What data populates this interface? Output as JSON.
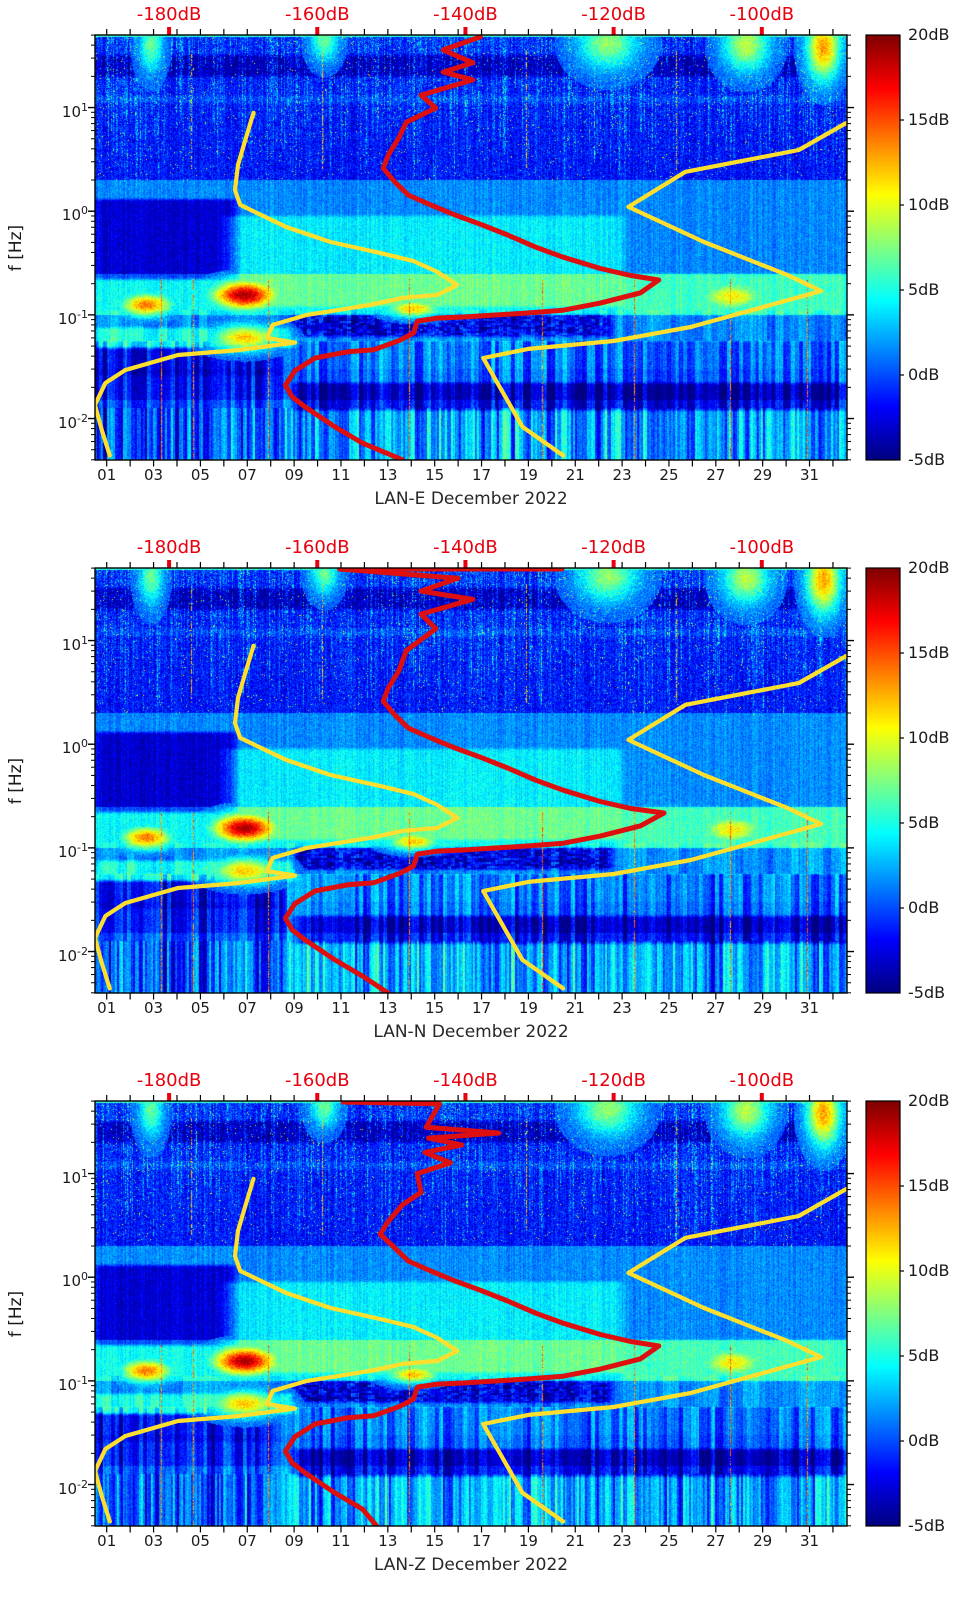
{
  "figure": {
    "background": "#ffffff"
  },
  "chart_data": {
    "type": "heatmap",
    "description": "Three stacked daily seismic power spectral density spectrograms (jet colormap, dB relative scale) for station LAN components E, N, Z in December 2022, with red station median PSD curve and yellow Peterson NLNM/NHNM reference model curves plotted against the red top dB axis.",
    "x_axis": {
      "tick_labels": [
        "01",
        "03",
        "05",
        "07",
        "09",
        "11",
        "13",
        "15",
        "17",
        "19",
        "21",
        "23",
        "25",
        "27",
        "29",
        "31"
      ],
      "tick_days": [
        1,
        3,
        5,
        7,
        9,
        11,
        13,
        15,
        17,
        19,
        21,
        23,
        25,
        27,
        29,
        31
      ],
      "minor_tick_days": [
        2,
        4,
        6,
        8,
        10,
        12,
        14,
        16,
        18,
        20,
        22,
        24,
        26,
        28,
        30,
        32
      ],
      "domain_days": [
        0.5,
        32.6
      ]
    },
    "y_axis": {
      "label": "f [Hz]",
      "scale": "log",
      "base": "10",
      "tick_exponents": [
        "1",
        "0",
        "-1",
        "-2"
      ],
      "domain_log10hz": [
        -2.4,
        1.7
      ]
    },
    "top_axis": {
      "unit": "dB",
      "color": "#e8000d",
      "tick_db": [
        -180,
        -160,
        -140,
        -120,
        -100
      ],
      "labels": [
        "-180dB",
        "-160dB",
        "-140dB",
        "-120dB",
        "-100dB"
      ],
      "domain_db": [
        -190,
        -88.5
      ]
    },
    "colorbar": {
      "colormap": "jet",
      "domain_db": [
        -5,
        20
      ],
      "tick_db": [
        20,
        15,
        10,
        5,
        0,
        -5
      ],
      "tick_labels": [
        "20dB",
        "15dB",
        "10dB",
        "5dB",
        "0dB",
        "-5dB"
      ]
    },
    "model_curves": {
      "color": "#ffdf2e",
      "nlnm": [
        [
          -168.6,
          8.9
        ],
        [
          -169.7,
          4.9
        ],
        [
          -170.7,
          2.8
        ],
        [
          -171.1,
          1.6
        ],
        [
          -170.4,
          1.15
        ],
        [
          -164.1,
          0.7
        ],
        [
          -158.2,
          0.505
        ],
        [
          -151.5,
          0.395
        ],
        [
          -147.0,
          0.33
        ],
        [
          -143.8,
          0.26
        ],
        [
          -141.1,
          0.194
        ],
        [
          -143.8,
          0.156
        ],
        [
          -148.4,
          0.146
        ],
        [
          -152.8,
          0.125
        ],
        [
          -161.4,
          0.1
        ],
        [
          -166.0,
          0.08
        ],
        [
          -166.8,
          0.06
        ],
        [
          -163.0,
          0.054
        ],
        [
          -170.7,
          0.0457
        ],
        [
          -178.8,
          0.041
        ],
        [
          -185.9,
          0.0294
        ],
        [
          -188.6,
          0.022
        ],
        [
          -190.0,
          0.0135
        ],
        [
          -189.1,
          0.0078
        ],
        [
          -188.0,
          0.0044
        ]
      ],
      "nhnm": [
        [
          -88.6,
          7.1
        ],
        [
          -95.0,
          3.9
        ],
        [
          -110.3,
          2.4
        ],
        [
          -118.0,
          1.1
        ],
        [
          -107.8,
          0.505
        ],
        [
          -96.5,
          0.242
        ],
        [
          -92.0,
          0.17
        ],
        [
          -109.6,
          0.0764
        ],
        [
          -120.0,
          0.056
        ],
        [
          -131.5,
          0.047
        ],
        [
          -137.6,
          0.0384
        ],
        [
          -132.3,
          0.0083
        ],
        [
          -126.8,
          0.0044
        ]
      ]
    },
    "psd_curve_color": "#dd0f0f",
    "panels": [
      {
        "station": "LAN-E",
        "title": "LAN-E December 2022",
        "seed": 101,
        "psd_curve": [
          [
            -138,
            48
          ],
          [
            -143,
            36
          ],
          [
            -139,
            27
          ],
          [
            -143,
            22
          ],
          [
            -139,
            18.5
          ],
          [
            -146,
            13.2
          ],
          [
            -144,
            9.9
          ],
          [
            -148,
            7.2
          ],
          [
            -149,
            5.1
          ],
          [
            -150.4,
            3.5
          ],
          [
            -151.1,
            2.6
          ],
          [
            -149.5,
            1.9
          ],
          [
            -147.7,
            1.43
          ],
          [
            -144.7,
            1.15
          ],
          [
            -141.4,
            0.92
          ],
          [
            -138,
            0.75
          ],
          [
            -134.3,
            0.59
          ],
          [
            -130.5,
            0.45
          ],
          [
            -126.8,
            0.36
          ],
          [
            -121.8,
            0.28
          ],
          [
            -117.7,
            0.24
          ],
          [
            -113.9,
            0.217
          ],
          [
            -116.4,
            0.163
          ],
          [
            -121.8,
            0.13
          ],
          [
            -126.8,
            0.111
          ],
          [
            -131.2,
            0.105
          ],
          [
            -135.7,
            0.1
          ],
          [
            -140.3,
            0.0955
          ],
          [
            -143.8,
            0.093
          ],
          [
            -146.5,
            0.087
          ],
          [
            -147,
            0.067
          ],
          [
            -148.8,
            0.057
          ],
          [
            -152.4,
            0.046
          ],
          [
            -155.9,
            0.044
          ],
          [
            -160.3,
            0.0384
          ],
          [
            -163,
            0.029
          ],
          [
            -164.3,
            0.021
          ],
          [
            -163.4,
            0.0162
          ],
          [
            -161.6,
            0.0129
          ],
          [
            -157.6,
            0.0083
          ],
          [
            -153.9,
            0.0058
          ],
          [
            -148.5,
            0.004
          ]
        ]
      },
      {
        "station": "LAN-N",
        "title": "LAN-N December 2022",
        "seed": 227,
        "psd_curve": [
          [
            -127,
            49
          ],
          [
            -157,
            49
          ],
          [
            -141,
            40
          ],
          [
            -146,
            30
          ],
          [
            -139,
            25
          ],
          [
            -146,
            18
          ],
          [
            -144,
            13
          ],
          [
            -148,
            8
          ],
          [
            -149,
            5.1
          ],
          [
            -150.4,
            3.5
          ],
          [
            -151.1,
            2.6
          ],
          [
            -149.5,
            1.9
          ],
          [
            -147.7,
            1.43
          ],
          [
            -144.7,
            1.15
          ],
          [
            -141.4,
            0.92
          ],
          [
            -138,
            0.75
          ],
          [
            -134.3,
            0.59
          ],
          [
            -130.5,
            0.45
          ],
          [
            -126.8,
            0.36
          ],
          [
            -121.8,
            0.28
          ],
          [
            -117.7,
            0.24
          ],
          [
            -113.2,
            0.217
          ],
          [
            -116.4,
            0.163
          ],
          [
            -121.8,
            0.13
          ],
          [
            -126.8,
            0.111
          ],
          [
            -131.2,
            0.105
          ],
          [
            -135.7,
            0.1
          ],
          [
            -140.3,
            0.0955
          ],
          [
            -143.8,
            0.093
          ],
          [
            -146.5,
            0.087
          ],
          [
            -147,
            0.067
          ],
          [
            -148.8,
            0.057
          ],
          [
            -152.4,
            0.046
          ],
          [
            -155.9,
            0.044
          ],
          [
            -160.3,
            0.0384
          ],
          [
            -163,
            0.029
          ],
          [
            -164.3,
            0.021
          ],
          [
            -163.4,
            0.0162
          ],
          [
            -161.6,
            0.0129
          ],
          [
            -157.6,
            0.0083
          ],
          [
            -153.9,
            0.0058
          ],
          [
            -150.5,
            0.004
          ]
        ]
      },
      {
        "station": "LAN-Z",
        "title": "LAN-Z December 2022",
        "seed": 353,
        "psd_curve": [
          [
            -156.5,
            49
          ],
          [
            -143.5,
            47
          ],
          [
            -145.3,
            28
          ],
          [
            -135.5,
            24.6
          ],
          [
            -145,
            22
          ],
          [
            -140.5,
            18.9
          ],
          [
            -145.5,
            16
          ],
          [
            -142,
            12.7
          ],
          [
            -146.5,
            10
          ],
          [
            -146,
            6.6
          ],
          [
            -148.5,
            5
          ],
          [
            -150.5,
            3.4
          ],
          [
            -151.5,
            2.6
          ],
          [
            -149.5,
            1.9
          ],
          [
            -147.7,
            1.43
          ],
          [
            -144.7,
            1.15
          ],
          [
            -141.4,
            0.92
          ],
          [
            -138,
            0.75
          ],
          [
            -134.3,
            0.59
          ],
          [
            -130.5,
            0.45
          ],
          [
            -126.8,
            0.36
          ],
          [
            -121.8,
            0.28
          ],
          [
            -117.7,
            0.24
          ],
          [
            -113.9,
            0.217
          ],
          [
            -116.4,
            0.163
          ],
          [
            -121.8,
            0.13
          ],
          [
            -126.8,
            0.111
          ],
          [
            -131.2,
            0.105
          ],
          [
            -135.7,
            0.1
          ],
          [
            -140.3,
            0.0955
          ],
          [
            -143.8,
            0.093
          ],
          [
            -146.5,
            0.087
          ],
          [
            -147,
            0.067
          ],
          [
            -148.8,
            0.057
          ],
          [
            -152.4,
            0.046
          ],
          [
            -155.9,
            0.044
          ],
          [
            -160.3,
            0.0384
          ],
          [
            -163,
            0.029
          ],
          [
            -164.3,
            0.021
          ],
          [
            -163.4,
            0.0162
          ],
          [
            -161.6,
            0.0129
          ],
          [
            -157.6,
            0.0083
          ],
          [
            -153.9,
            0.0058
          ],
          [
            -152,
            0.004
          ]
        ]
      }
    ],
    "spectrogram_features": {
      "value_unit": "dB",
      "value_range": [
        -5,
        20
      ],
      "base_bands": [
        {
          "f_min": 2,
          "f_max": 55,
          "db": -1.5
        },
        {
          "f_min": 0.25,
          "f_max": 2,
          "db": 1.5
        },
        {
          "f_min": 0.1,
          "f_max": 0.25,
          "db": 4.5
        },
        {
          "f_min": 0.055,
          "f_max": 0.1,
          "db": 1.5
        },
        {
          "f_min": 0.03,
          "f_max": 0.055,
          "db": 0.5
        },
        {
          "f_min": 0.015,
          "f_max": 0.03,
          "db": 0.0
        },
        {
          "f_min": 0.004,
          "f_max": 0.015,
          "db": 1.5
        }
      ],
      "patches": [
        {
          "days": [
            0.5,
            32.6
          ],
          "f": [
            20,
            32
          ],
          "db": -2.5
        },
        {
          "days": [
            0.5,
            32.6
          ],
          "f": [
            11,
            13
          ],
          "db": 1.2
        },
        {
          "days": [
            0.5,
            6.5
          ],
          "f": [
            0.22,
            1.3
          ],
          "db": -4.5
        },
        {
          "days": [
            6,
            23
          ],
          "f": [
            0.12,
            0.9
          ],
          "db": 2.5
        },
        {
          "days": [
            23,
            32.6
          ],
          "f": [
            0.1,
            0.25
          ],
          "db": 1.5
        },
        {
          "days": [
            9,
            22.5
          ],
          "f": [
            0.062,
            0.1
          ],
          "db": -4,
          "patchy": true
        },
        {
          "days": [
            0.5,
            9
          ],
          "f": [
            0.048,
            0.075
          ],
          "db": 3.5
        },
        {
          "days": [
            0.5,
            8.5
          ],
          "f": [
            0.026,
            0.048
          ],
          "db": -3
        },
        {
          "days": [
            9,
            32.6
          ],
          "f": [
            0.012,
            0.022
          ],
          "db": -4
        },
        {
          "days": [
            0.5,
            8.5
          ],
          "f": [
            0.004,
            0.026
          ],
          "db": -2
        }
      ],
      "hotspots": [
        {
          "day": 6.9,
          "f": 0.155,
          "sd": 1.0,
          "sf": 0.1,
          "db": 19
        },
        {
          "day": 2.7,
          "f": 0.125,
          "sd": 0.8,
          "sf": 0.08,
          "db": 14
        },
        {
          "day": 14.1,
          "f": 0.115,
          "sd": 0.8,
          "sf": 0.06,
          "db": 12
        },
        {
          "day": 6.9,
          "f": 0.06,
          "sd": 1.0,
          "sf": 0.09,
          "db": 12
        },
        {
          "day": 27.7,
          "f": 0.15,
          "sd": 1.0,
          "sf": 0.1,
          "db": 11
        },
        {
          "day": 31.6,
          "f": 38,
          "sd": 0.5,
          "sf": 0.22,
          "db": 13
        },
        {
          "day": 28.3,
          "f": 40,
          "sd": 0.7,
          "sf": 0.18,
          "db": 9
        },
        {
          "day": 22.4,
          "f": 42,
          "sd": 0.9,
          "sf": 0.18,
          "db": 8
        },
        {
          "day": 10.3,
          "f": 44,
          "sd": 0.4,
          "sf": 0.14,
          "db": 7
        },
        {
          "day": 2.9,
          "f": 40,
          "sd": 0.35,
          "sf": 0.18,
          "db": 7
        }
      ],
      "noise_spike_days": [
        3.3,
        4.7,
        7.9,
        13.9,
        19.6,
        23.5,
        27.6,
        30.9
      ],
      "upper_streak_days": [
        4.6,
        10.2,
        18.9,
        25.3
      ]
    }
  }
}
